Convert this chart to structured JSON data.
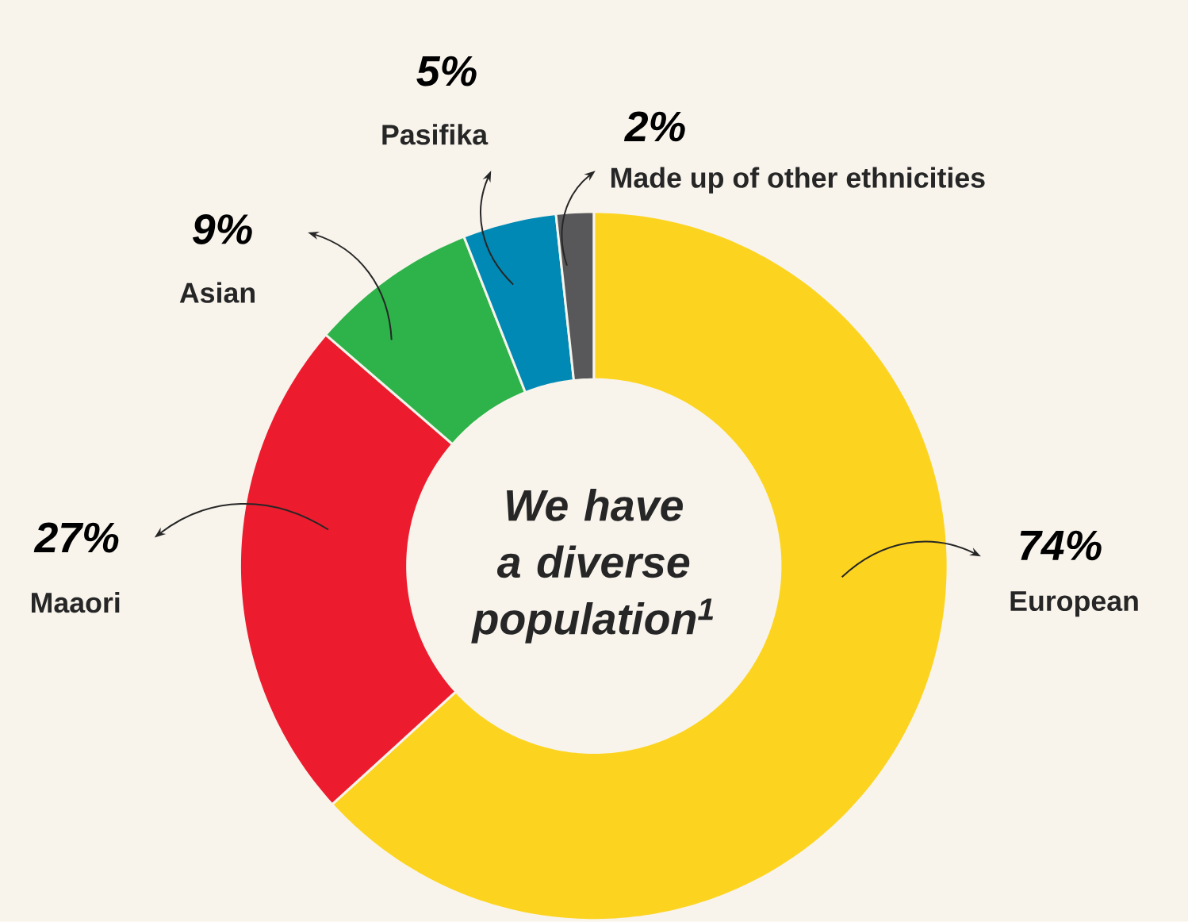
{
  "chart_data": {
    "type": "donut",
    "title": "We have a diverse population$^{1}$",
    "categories": [
      "European",
      "Maaori",
      "Asian",
      "Pasifika",
      "Made up of other ethnicities"
    ],
    "values": [
      74,
      27,
      9,
      5,
      2
    ],
    "value_labels": [
      "74%",
      "27%",
      "9%",
      "5%",
      "2%"
    ],
    "colors": [
      "#fcd420",
      "#ec1c2e",
      "#2db34a",
      "#0089b5",
      "#58585a"
    ]
  }
}
